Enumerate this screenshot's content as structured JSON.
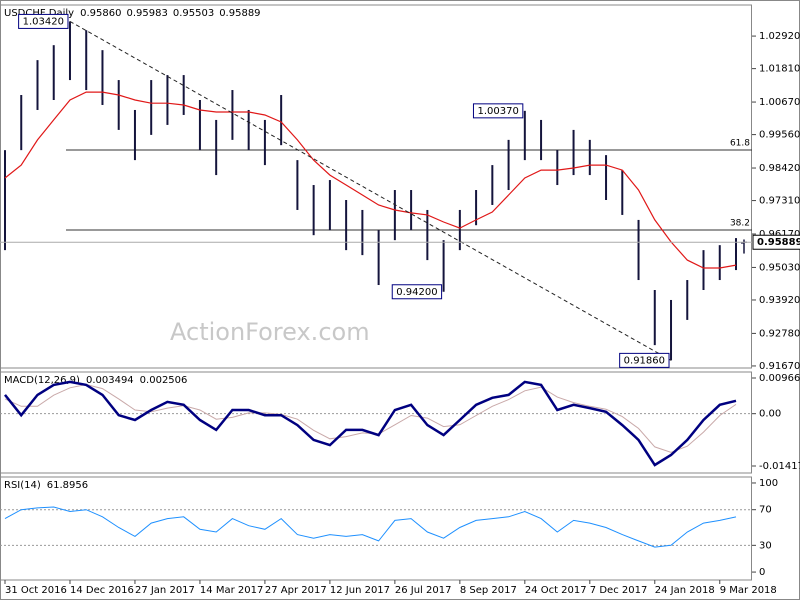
{
  "chart_data": [
    {
      "type": "ohlc",
      "title": "USDCHF,Daily",
      "quote": {
        "values": [
          0.9586,
          0.95983,
          0.95503,
          0.95889
        ],
        "value_labels": [
          "0.95860",
          "0.95983",
          "0.95503",
          "0.95889"
        ]
      },
      "color": "#14143c",
      "high": [
        0.9903,
        1.0091,
        1.021,
        1.0261,
        1.0342,
        1.0312,
        1.0244,
        1.0142,
        1.004,
        1.0142,
        1.0159,
        1.0159,
        1.0074,
        1.0006,
        1.0108,
        1.004,
        1.0006,
        1.0091,
        0.9869,
        0.9784,
        0.9801,
        0.9733,
        0.9699,
        0.963,
        0.9767,
        0.9767,
        0.9699,
        0.9596,
        0.9699,
        0.9767,
        0.9852,
        0.9938,
        1.0037,
        1.0006,
        0.9903,
        0.9972,
        0.9938,
        0.9886,
        0.9835,
        0.9665,
        0.9426,
        0.9392,
        0.946,
        0.9562,
        0.9579,
        0.9603
      ],
      "low": [
        0.9562,
        0.9903,
        1.004,
        1.0074,
        1.0142,
        1.0108,
        1.0057,
        0.9972,
        0.9869,
        0.9955,
        0.9989,
        1.0023,
        0.9903,
        0.9818,
        0.9938,
        0.9903,
        0.9852,
        0.992,
        0.9699,
        0.9613,
        0.963,
        0.9562,
        0.9545,
        0.9443,
        0.9596,
        0.963,
        0.9528,
        0.942,
        0.9562,
        0.9647,
        0.9716,
        0.9767,
        0.9869,
        0.9869,
        0.9784,
        0.9818,
        0.9818,
        0.9733,
        0.9682,
        0.946,
        0.9238,
        0.9186,
        0.9324,
        0.9426,
        0.946,
        0.9494
      ],
      "series": [
        {
          "color": "#e01818",
          "values": [
            0.9808,
            0.9852,
            0.9938,
            1.0006,
            1.0074,
            1.0101,
            1.0101,
            1.0091,
            1.0074,
            1.0063,
            1.0063,
            1.0057,
            1.004,
            1.0033,
            1.0033,
            1.0033,
            1.0023,
            0.9999,
            0.9938,
            0.9869,
            0.9818,
            0.9784,
            0.975,
            0.9716,
            0.9699,
            0.9689,
            0.9682,
            0.9658,
            0.9637,
            0.9665,
            0.9692,
            0.975,
            0.9808,
            0.9835,
            0.9835,
            0.9842,
            0.9852,
            0.9852,
            0.9835,
            0.9767,
            0.9665,
            0.959,
            0.9528,
            0.9501,
            0.9501,
            0.9511
          ]
        }
      ],
      "ylim": [
        0.916,
        1.0398
      ],
      "yticks": [
        {
          "value": 1.0292,
          "label": "1.02920"
        },
        {
          "value": 1.0181,
          "label": "1.01810"
        },
        {
          "value": 1.0067,
          "label": "1.00670"
        },
        {
          "value": 0.9956,
          "label": "0.99560"
        },
        {
          "value": 0.9842,
          "label": "0.98420"
        },
        {
          "value": 0.9731,
          "label": "0.97310"
        },
        {
          "value": 0.9617,
          "label": "0.96170"
        },
        {
          "value": 0.9503,
          "label": "0.95030"
        },
        {
          "value": 0.9392,
          "label": "0.93920"
        },
        {
          "value": 0.9278,
          "label": "0.92780"
        },
        {
          "value": 0.9167,
          "label": "0.91670"
        }
      ],
      "levels": [
        {
          "value": 0.99033,
          "label": "61.8"
        },
        {
          "value": 0.96306,
          "label": "38.2"
        }
      ],
      "annotations": [
        {
          "x": 4,
          "value": 1.0342,
          "label": "1.03420"
        },
        {
          "x": 32,
          "value": 1.0037,
          "label": "1.00370"
        },
        {
          "x": 27,
          "value": 0.942,
          "label": "0.94200"
        },
        {
          "x": 41,
          "value": 0.9186,
          "label": "0.91860"
        }
      ],
      "trendline": true,
      "watermark": "ActionForex.com"
    },
    {
      "type": "line",
      "title": "MACD(12,26,9)",
      "series": [
        {
          "color": "#000080",
          "values": [
            0.0051,
            -0.0004,
            0.0051,
            0.0078,
            0.0086,
            0.0078,
            0.0051,
            -0.0004,
            -0.0017,
            0.001,
            0.0032,
            0.0024,
            -0.0017,
            -0.0044,
            0.001,
            0.001,
            -0.0004,
            -0.0004,
            -0.0031,
            -0.0071,
            -0.0085,
            -0.0044,
            -0.0044,
            -0.0058,
            0.001,
            0.0024,
            -0.0031,
            -0.0058,
            -0.0017,
            0.0024,
            0.0043,
            0.0051,
            0.0086,
            0.0078,
            0.001,
            0.0024,
            0.0015,
            0.0005,
            -0.0031,
            -0.0071,
            -0.0139,
            -0.0112,
            -0.0071,
            -0.0017,
            0.0024,
            0.003494
          ]
        },
        {
          "color": "#c9a9a9",
          "values": [
            0.004,
            0.002,
            0.002,
            0.005,
            0.007,
            0.0079,
            0.0068,
            0.004,
            0.001,
            0.0005,
            0.0015,
            0.0022,
            0.001,
            -0.0015,
            -0.001,
            0.0002,
            0.0002,
            -0.0002,
            -0.0015,
            -0.0045,
            -0.0068,
            -0.0062,
            -0.0052,
            -0.0055,
            -0.003,
            -0.0005,
            -0.0012,
            -0.0035,
            -0.003,
            -0.0005,
            0.002,
            0.0038,
            0.0062,
            0.0072,
            0.0045,
            0.003,
            0.002,
            0.0012,
            -0.0008,
            -0.004,
            -0.009,
            -0.0105,
            -0.0088,
            -0.005,
            -0.0005,
            0.002506
          ]
        }
      ],
      "ylim": [
        -0.01607,
        0.01129
      ],
      "yticks": [
        0.009664,
        {
          "value": 0,
          "label": "0.00"
        },
        -0.014171
      ],
      "levels": [
        0
      ]
    },
    {
      "type": "line",
      "title": "RSI(14)",
      "series": [
        {
          "color": "#1e90ff",
          "values": [
            60,
            70,
            72,
            73,
            68,
            70,
            62,
            50,
            40,
            55,
            60,
            62,
            48,
            45,
            60,
            52,
            48,
            60,
            42,
            38,
            42,
            40,
            42,
            35,
            58,
            60,
            45,
            38,
            50,
            58,
            60,
            62,
            68,
            60,
            45,
            58,
            55,
            50,
            42,
            35,
            28,
            30,
            45,
            55,
            58,
            61.8956
          ]
        }
      ],
      "ylim": [
        -8.9,
        106.7
      ],
      "yticks": [
        100,
        70,
        30,
        0
      ],
      "levels": [
        70,
        30
      ],
      "categories": [
        "31 Oct 2016",
        null,
        null,
        null,
        "14 Dec 2016",
        null,
        null,
        null,
        "27 Jan 2017",
        null,
        null,
        null,
        "14 Mar 2017",
        null,
        null,
        null,
        "27 Apr 2017",
        null,
        null,
        null,
        "12 Jun 2017",
        null,
        null,
        null,
        "26 Jul 2017",
        null,
        null,
        null,
        "8 Sep 2017",
        null,
        null,
        null,
        "24 Oct 2017",
        null,
        null,
        null,
        "7 Dec 2017",
        null,
        null,
        null,
        "24 Jan 2018",
        null,
        null,
        null,
        "9 Mar 2018",
        null
      ]
    }
  ]
}
